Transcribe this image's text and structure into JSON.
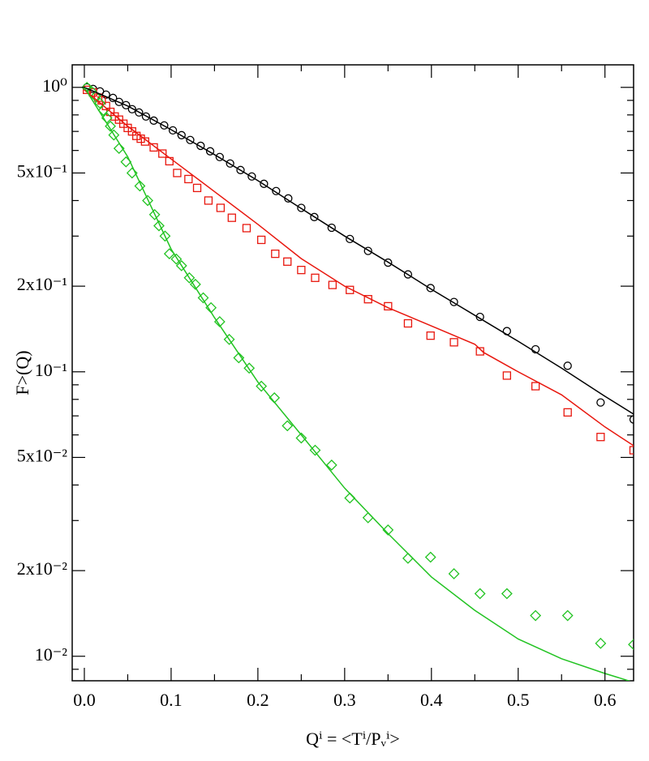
{
  "chart_data": {
    "type": "scatter",
    "xlabel": "Qⁱ = <Tⁱ/Pᵥⁱ>",
    "ylabel": "F>(Q)",
    "log_y": true,
    "xlim": [
      -0.014,
      0.633
    ],
    "ylim": [
      0.0082,
      1.2
    ],
    "xticks": [
      {
        "value": 0,
        "label": "0.0"
      },
      0.1,
      0.2,
      0.3,
      0.4,
      0.5,
      0.6
    ],
    "xminor": [
      0.05,
      0.15,
      0.25,
      0.35,
      0.45,
      0.55
    ],
    "yticks": [
      {
        "value": 1,
        "label": "10⁰"
      },
      {
        "value": 0.5,
        "label": "5x10⁻¹"
      },
      {
        "value": 0.2,
        "label": "2x10⁻¹"
      },
      {
        "value": 0.1,
        "label": "10⁻¹"
      },
      {
        "value": 0.05,
        "label": "5x10⁻²"
      },
      {
        "value": 0.02,
        "label": "2x10⁻²"
      },
      {
        "value": 0.01,
        "label": "10⁻²"
      }
    ],
    "yminor": [
      0.9,
      0.8,
      0.7,
      0.6,
      0.4,
      0.3,
      0.09,
      0.08,
      0.07,
      0.06,
      0.04,
      0.03,
      0.009
    ],
    "series": [
      {
        "style": "marker",
        "marker": "circle",
        "color": "#000000",
        "x": [
          0.003,
          0.01,
          0.018,
          0.025,
          0.033,
          0.04,
          0.048,
          0.055,
          0.063,
          0.071,
          0.08,
          0.092,
          0.102,
          0.112,
          0.122,
          0.134,
          0.145,
          0.156,
          0.168,
          0.18,
          0.193,
          0.207,
          0.221,
          0.235,
          0.25,
          0.265,
          0.285,
          0.306,
          0.327,
          0.35,
          0.373,
          0.399,
          0.426,
          0.456,
          0.487,
          0.52,
          0.557,
          0.595,
          0.633
        ],
        "values": [
          1.0,
          0.987,
          0.968,
          0.943,
          0.918,
          0.889,
          0.866,
          0.838,
          0.816,
          0.79,
          0.764,
          0.735,
          0.706,
          0.679,
          0.653,
          0.623,
          0.596,
          0.569,
          0.54,
          0.512,
          0.486,
          0.458,
          0.432,
          0.407,
          0.377,
          0.35,
          0.321,
          0.293,
          0.266,
          0.242,
          0.22,
          0.197,
          0.176,
          0.156,
          0.139,
          0.12,
          0.105,
          0.078,
          0.068
        ]
      },
      {
        "style": "marker",
        "marker": "square",
        "color": "#e8170e",
        "x": [
          0.003,
          0.01,
          0.016,
          0.02,
          0.025,
          0.03,
          0.035,
          0.04,
          0.045,
          0.05,
          0.055,
          0.06,
          0.065,
          0.07,
          0.08,
          0.09,
          0.098,
          0.107,
          0.12,
          0.13,
          0.143,
          0.157,
          0.17,
          0.187,
          0.204,
          0.22,
          0.234,
          0.25,
          0.266,
          0.286,
          0.306,
          0.327,
          0.35,
          0.373,
          0.399,
          0.426,
          0.456,
          0.487,
          0.52,
          0.557,
          0.595,
          0.633
        ],
        "values": [
          0.98,
          0.96,
          0.92,
          0.9,
          0.86,
          0.82,
          0.79,
          0.77,
          0.745,
          0.72,
          0.7,
          0.675,
          0.66,
          0.645,
          0.615,
          0.585,
          0.55,
          0.5,
          0.476,
          0.443,
          0.4,
          0.377,
          0.348,
          0.32,
          0.291,
          0.26,
          0.244,
          0.228,
          0.214,
          0.202,
          0.194,
          0.18,
          0.17,
          0.148,
          0.134,
          0.127,
          0.118,
          0.097,
          0.089,
          0.072,
          0.059,
          0.053
        ]
      },
      {
        "style": "marker",
        "marker": "diamond",
        "color": "#22c322",
        "x": [
          0.003,
          0.008,
          0.013,
          0.018,
          0.022,
          0.026,
          0.03,
          0.034,
          0.04,
          0.048,
          0.055,
          0.064,
          0.073,
          0.081,
          0.086,
          0.093,
          0.098,
          0.106,
          0.112,
          0.121,
          0.128,
          0.137,
          0.146,
          0.156,
          0.167,
          0.178,
          0.19,
          0.204,
          0.219,
          0.234,
          0.25,
          0.266,
          0.285,
          0.306,
          0.327,
          0.35,
          0.373,
          0.399,
          0.426,
          0.456,
          0.487,
          0.52,
          0.557,
          0.595,
          0.633
        ],
        "values": [
          1.0,
          0.97,
          0.93,
          0.88,
          0.83,
          0.78,
          0.73,
          0.68,
          0.61,
          0.547,
          0.5,
          0.45,
          0.4,
          0.357,
          0.326,
          0.3,
          0.26,
          0.249,
          0.236,
          0.214,
          0.203,
          0.182,
          0.168,
          0.15,
          0.13,
          0.112,
          0.103,
          0.089,
          0.081,
          0.0646,
          0.0585,
          0.053,
          0.047,
          0.036,
          0.0307,
          0.0278,
          0.0221,
          0.0223,
          0.0195,
          0.0166,
          0.0166,
          0.0139,
          0.0139,
          0.0111,
          0.011
        ]
      },
      {
        "style": "line",
        "color": "#000000",
        "x": [
          0,
          0.05,
          0.1,
          0.15,
          0.2,
          0.25,
          0.3,
          0.35,
          0.4,
          0.45,
          0.5,
          0.55,
          0.6,
          0.633
        ],
        "values": [
          1.0,
          0.86,
          0.71,
          0.58,
          0.47,
          0.375,
          0.3,
          0.243,
          0.195,
          0.158,
          0.128,
          0.103,
          0.082,
          0.071
        ]
      },
      {
        "style": "line",
        "color": "#e8170e",
        "x": [
          0,
          0.05,
          0.1,
          0.15,
          0.2,
          0.25,
          0.3,
          0.35,
          0.4,
          0.45,
          0.455,
          0.46,
          0.5,
          0.55,
          0.6,
          0.633
        ],
        "values": [
          0.98,
          0.73,
          0.56,
          0.43,
          0.33,
          0.25,
          0.2,
          0.168,
          0.145,
          0.125,
          0.121,
          0.117,
          0.1,
          0.083,
          0.064,
          0.055
        ]
      },
      {
        "style": "line",
        "color": "#22c322",
        "x": [
          0,
          0.05,
          0.1,
          0.15,
          0.2,
          0.25,
          0.3,
          0.35,
          0.4,
          0.45,
          0.5,
          0.55,
          0.6,
          0.633
        ],
        "values": [
          1.0,
          0.57,
          0.27,
          0.155,
          0.092,
          0.06,
          0.039,
          0.027,
          0.019,
          0.0145,
          0.0115,
          0.0098,
          0.0087,
          0.0081
        ]
      }
    ]
  }
}
